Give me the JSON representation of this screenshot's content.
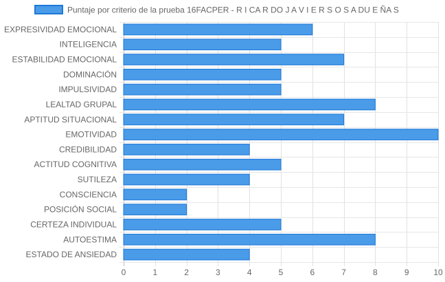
{
  "chart_data": {
    "type": "bar",
    "orientation": "horizontal",
    "title": "",
    "xlabel": "",
    "ylabel": "",
    "xlim": [
      0,
      10
    ],
    "x_ticks": [
      0,
      1,
      2,
      3,
      4,
      5,
      6,
      7,
      8,
      9,
      10
    ],
    "grid": true,
    "legend_position": "top",
    "categories": [
      "EXPRESIVIDAD EMOCIONAL",
      "INTELIGENCIA",
      "ESTABILIDAD EMOCIONAL",
      "DOMINACIÓN",
      "IMPULSIVIDAD",
      "LEALTAD GRUPAL",
      "APTITUD SITUACIONAL",
      "EMOTIVIDAD",
      "CREDIBILIDAD",
      "ACTITUD COGNITIVA",
      "SUTILEZA",
      "CONSCIENCIA",
      "POSICIÓN SOCIAL",
      "CERTEZA INDIVIDUAL",
      "AUTOESTIMA",
      "ESTADO DE ANSIEDAD"
    ],
    "series": [
      {
        "name": "Puntaje por criterio de la prueba 16FACPER - R I CA R DO J A V I E R S O S A DU E ÑA S",
        "color": "#4a9be8",
        "border_color": "#1e78d8",
        "values": [
          6,
          5,
          7,
          5,
          5,
          8,
          7,
          10,
          4,
          5,
          4,
          2,
          2,
          5,
          8,
          4
        ]
      }
    ]
  }
}
